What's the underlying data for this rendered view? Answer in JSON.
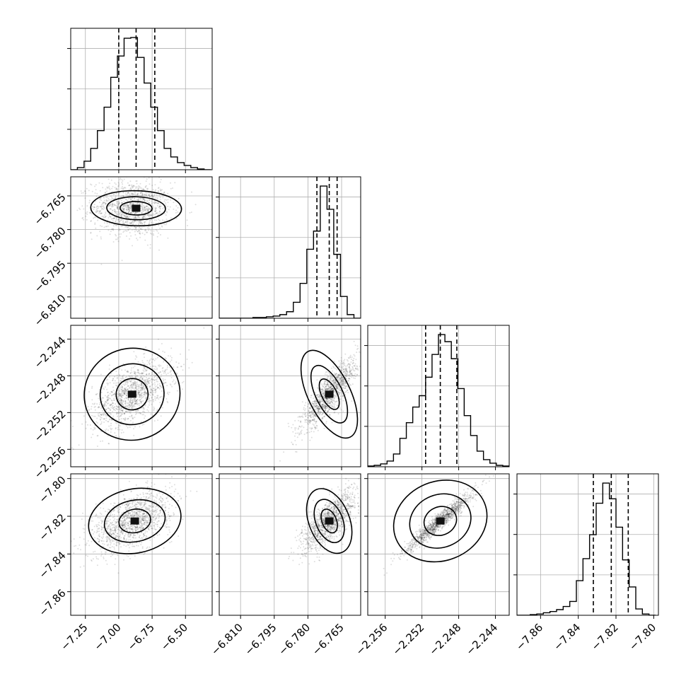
{
  "chart_data": {
    "type": "corner",
    "grid": true,
    "parameters": [
      {
        "ticks": [
          -7.25,
          -7.0,
          -6.75,
          -6.5
        ],
        "tick_labels": [
          "−7.25",
          "−7.00",
          "−6.75",
          "−6.50"
        ],
        "range": [
          -7.36,
          -6.3
        ],
        "quantiles": [
          -7.0,
          -6.87,
          -6.73
        ],
        "hist_edges": [
          -7.36,
          -7.31,
          -7.26,
          -7.21,
          -7.16,
          -7.11,
          -7.06,
          -7.01,
          -6.96,
          -6.91,
          -6.86,
          -6.81,
          -6.76,
          -6.71,
          -6.66,
          -6.61,
          -6.56,
          -6.51,
          -6.46,
          -6.41,
          -6.36,
          -6.31
        ],
        "hist_counts": [
          0,
          3,
          12,
          30,
          55,
          88,
          130,
          160,
          185,
          186,
          158,
          122,
          88,
          55,
          30,
          18,
          10,
          6,
          3,
          1,
          0
        ]
      },
      {
        "ticks": [
          -6.81,
          -6.795,
          -6.78,
          -6.765
        ],
        "tick_labels": [
          "−6.810",
          "−6.795",
          "−6.780",
          "−6.765"
        ],
        "range": [
          -6.8195,
          -6.7565
        ],
        "quantiles": [
          -6.776,
          -6.7705,
          -6.767
        ],
        "hist_edges": [
          -6.8195,
          -6.8165,
          -6.8135,
          -6.8105,
          -6.8075,
          -6.8045,
          -6.8015,
          -6.7985,
          -6.7955,
          -6.7925,
          -6.7895,
          -6.7865,
          -6.7835,
          -6.7805,
          -6.7775,
          -6.7745,
          -6.7715,
          -6.7685,
          -6.7655,
          -6.7625,
          -6.7595,
          -6.7565
        ],
        "hist_counts": [
          0,
          0,
          0,
          0,
          0,
          1,
          1,
          2,
          3,
          5,
          9,
          22,
          48,
          95,
          120,
          182,
          150,
          88,
          30,
          5,
          0
        ]
      },
      {
        "ticks": [
          -2.256,
          -2.252,
          -2.248,
          -2.244
        ],
        "tick_labels": [
          "−2.256",
          "−2.252",
          "−2.248",
          "−2.244"
        ],
        "range": [
          -2.2579,
          -2.2425
        ],
        "quantiles": [
          -2.2516,
          -2.25,
          -2.2482
        ],
        "hist_edges": [
          -2.2579,
          -2.2572,
          -2.2565,
          -2.2558,
          -2.2551,
          -2.2544,
          -2.2537,
          -2.253,
          -2.2523,
          -2.2516,
          -2.2509,
          -2.2502,
          -2.2495,
          -2.2488,
          -2.2481,
          -2.2474,
          -2.2467,
          -2.246,
          -2.2453,
          -2.2446,
          -2.2439,
          -2.2432,
          -2.2425
        ],
        "hist_counts": [
          1,
          2,
          4,
          8,
          18,
          40,
          62,
          84,
          100,
          126,
          158,
          186,
          176,
          152,
          110,
          72,
          44,
          22,
          10,
          5,
          2,
          1
        ]
      },
      {
        "ticks": [
          -7.86,
          -7.84,
          -7.82,
          -7.8
        ],
        "tick_labels": [
          "−7.86",
          "−7.84",
          "−7.82",
          "−7.80"
        ],
        "range": [
          -7.8725,
          -7.7975
        ],
        "quantiles": [
          -7.832,
          -7.8225,
          -7.8135
        ],
        "hist_edges": [
          -7.8725,
          -7.869,
          -7.8655,
          -7.862,
          -7.8585,
          -7.855,
          -7.8515,
          -7.848,
          -7.8445,
          -7.841,
          -7.8375,
          -7.834,
          -7.8305,
          -7.827,
          -7.8235,
          -7.82,
          -7.8165,
          -7.813,
          -7.8095,
          -7.806,
          -7.8025,
          -7.799
        ],
        "hist_counts": [
          0,
          0,
          1,
          2,
          4,
          6,
          9,
          14,
          22,
          55,
          90,
          128,
          178,
          210,
          185,
          140,
          88,
          45,
          10,
          2,
          0
        ]
      }
    ],
    "pairs": [
      {
        "x": 0,
        "y": 1,
        "center": [
          -6.9,
          -6.7705
        ],
        "sd": [
          0.11,
          0.0045
        ],
        "rho": -0.05,
        "contour_center": [
          -6.87,
          -6.7705
        ],
        "contour_radii": [
          [
            0.34,
            0.0078
          ],
          [
            0.22,
            0.0051
          ],
          [
            0.12,
            0.003
          ]
        ]
      },
      {
        "x": 0,
        "y": 2,
        "center": [
          -6.9,
          -2.25
        ],
        "sd": [
          0.11,
          0.0014
        ],
        "rho": 0.55,
        "contour_center": [
          -6.9,
          -2.25
        ],
        "contour_radii": [
          [
            0.36,
            0.005
          ],
          [
            0.24,
            0.0033
          ],
          [
            0.12,
            0.0017
          ]
        ]
      },
      {
        "x": 1,
        "y": 2,
        "center": [
          -6.7705,
          -2.25
        ],
        "sd": [
          0.0045,
          0.0014
        ],
        "rho": 0.85,
        "contour_center": [
          -6.7705,
          -2.25
        ],
        "contour_radii": [
          [
            0.0094,
            0.0052
          ],
          [
            0.006,
            0.0034
          ],
          [
            0.0034,
            0.0018
          ]
        ]
      },
      {
        "x": 0,
        "y": 3,
        "center": [
          -6.9,
          -7.8225
        ],
        "sd": [
          0.11,
          0.006
        ],
        "rho": 0.5,
        "contour_center": [
          -6.88,
          -7.8225
        ],
        "contour_radii": [
          [
            0.35,
            0.017
          ],
          [
            0.23,
            0.011
          ],
          [
            0.12,
            0.0062
          ]
        ]
      },
      {
        "x": 1,
        "y": 3,
        "center": [
          -6.7705,
          -7.8225
        ],
        "sd": [
          0.0045,
          0.006
        ],
        "rho": 0.75,
        "contour_center": [
          -6.7705,
          -7.8225
        ],
        "contour_radii": [
          [
            0.009,
            0.018
          ],
          [
            0.006,
            0.012
          ],
          [
            0.0032,
            0.0066
          ]
        ]
      },
      {
        "x": 2,
        "y": 3,
        "center": [
          -2.25,
          -7.8225
        ],
        "sd": [
          0.0014,
          0.006
        ],
        "rho": 0.96,
        "contour_center": [
          -2.25,
          -7.8225
        ],
        "contour_radii": [
          [
            0.0052,
            0.021
          ],
          [
            0.0034,
            0.014
          ],
          [
            0.0018,
            0.0075
          ]
        ]
      }
    ]
  }
}
